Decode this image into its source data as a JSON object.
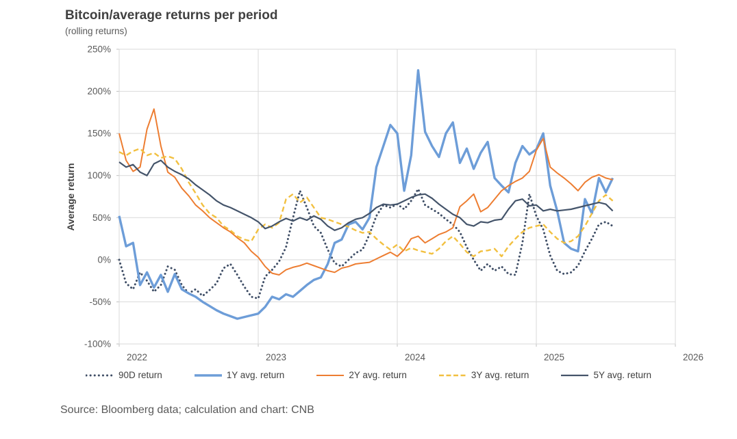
{
  "title": "Bitcoin/average returns per period",
  "subtitle": "(rolling returns)",
  "source": "Source: Bloomberg data; calculation and chart: CNB",
  "colors": {
    "title_text": "#404040",
    "axis_text": "#595959",
    "gridline": "#D9D9D9",
    "background": "#FFFFFF",
    "series_90d": "#3F4E66",
    "series_1y": "#6D9DD8",
    "series_2y": "#ED7D31",
    "series_3y": "#F2C040",
    "series_5y": "#44546A"
  },
  "chart_data": {
    "type": "line",
    "title": "Bitcoin/average returns per period",
    "subtitle": "(rolling returns)",
    "xlabel": "",
    "ylabel": "Average return",
    "grid": true,
    "legend_position": "bottom",
    "xlim": [
      2022,
      2026
    ],
    "ylim": [
      -100,
      250
    ],
    "x_ticks": [
      2022,
      2023,
      2024,
      2025,
      2026
    ],
    "y_ticks": [
      250,
      200,
      150,
      100,
      50,
      0,
      -50,
      -100
    ],
    "y_tick_suffix": "%",
    "x_start": 2022.0,
    "x_step": 0.05,
    "series": [
      {
        "name": "90D return",
        "color": "#3F4E66",
        "style": "dotted",
        "width": 3,
        "values": [
          0,
          -28,
          -35,
          -15,
          -25,
          -38,
          -30,
          -8,
          -12,
          -30,
          -40,
          -35,
          -43,
          -36,
          -28,
          -10,
          -5,
          -18,
          -32,
          -44,
          -46,
          -20,
          -12,
          -2,
          15,
          50,
          82,
          62,
          40,
          32,
          12,
          -4,
          -8,
          0,
          8,
          12,
          30,
          52,
          65,
          62,
          66,
          60,
          70,
          84,
          65,
          60,
          55,
          48,
          42,
          33,
          15,
          0,
          -13,
          -5,
          -13,
          -8,
          -17,
          -18,
          20,
          78,
          52,
          36,
          5,
          -13,
          -17,
          -15,
          -7,
          10,
          25,
          42,
          45,
          40
        ]
      },
      {
        "name": "1Y avg. return",
        "color": "#6D9DD8",
        "style": "solid",
        "width": 3.4,
        "values": [
          52,
          16,
          20,
          -30,
          -15,
          -33,
          -18,
          -38,
          -17,
          -35,
          -40,
          -44,
          -50,
          -55,
          -60,
          -64,
          -67,
          -70,
          -68,
          -66,
          -64,
          -56,
          -44,
          -47,
          -41,
          -44,
          -37,
          -30,
          -24,
          -21,
          -5,
          20,
          24,
          42,
          45,
          36,
          50,
          110,
          135,
          160,
          150,
          82,
          124,
          225,
          152,
          135,
          122,
          150,
          163,
          115,
          132,
          108,
          127,
          140,
          97,
          88,
          80,
          115,
          135,
          125,
          131,
          150,
          88,
          58,
          20,
          13,
          10,
          72,
          55,
          97,
          80,
          97
        ]
      },
      {
        "name": "2Y avg. return",
        "color": "#ED7D31",
        "style": "solid",
        "width": 2,
        "values": [
          150,
          118,
          105,
          110,
          155,
          179,
          135,
          104,
          98,
          85,
          76,
          65,
          58,
          50,
          44,
          38,
          33,
          26,
          20,
          10,
          3,
          -8,
          -16,
          -18,
          -12,
          -9,
          -7,
          -4,
          -7,
          -10,
          -13,
          -15,
          -10,
          -8,
          -5,
          -4,
          -3,
          1,
          5,
          9,
          4,
          12,
          25,
          28,
          20,
          25,
          30,
          33,
          38,
          63,
          70,
          78,
          57,
          62,
          72,
          82,
          88,
          93,
          97,
          105,
          130,
          144,
          110,
          103,
          97,
          90,
          82,
          92,
          98,
          101,
          97,
          95
        ]
      },
      {
        "name": "3Y avg. return",
        "color": "#F2C040",
        "style": "dashed",
        "width": 2.4,
        "values": [
          128,
          124,
          129,
          132,
          124,
          127,
          121,
          123,
          120,
          108,
          92,
          79,
          65,
          55,
          50,
          40,
          35,
          28,
          24,
          22,
          36,
          42,
          38,
          44,
          72,
          78,
          68,
          74,
          62,
          50,
          48,
          45,
          42,
          39,
          35,
          32,
          33,
          25,
          18,
          12,
          18,
          10,
          14,
          11,
          9,
          7,
          13,
          22,
          28,
          19,
          9,
          4,
          10,
          11,
          13,
          4,
          16,
          25,
          33,
          38,
          40,
          42,
          33,
          25,
          20,
          22,
          28,
          40,
          55,
          70,
          77,
          70
        ]
      },
      {
        "name": "5Y avg. return",
        "color": "#44546A",
        "style": "solid",
        "width": 2.2,
        "values": [
          116,
          110,
          113,
          104,
          100,
          114,
          118,
          110,
          105,
          101,
          96,
          89,
          83,
          77,
          70,
          65,
          62,
          58,
          54,
          50,
          45,
          37,
          40,
          45,
          49,
          46,
          50,
          47,
          52,
          48,
          40,
          35,
          38,
          44,
          48,
          50,
          55,
          62,
          66,
          65,
          66,
          70,
          74,
          77,
          78,
          73,
          66,
          60,
          54,
          50,
          42,
          40,
          45,
          44,
          47,
          48,
          60,
          70,
          72,
          64,
          65,
          58,
          60,
          58,
          59,
          60,
          62,
          64,
          66,
          68,
          66,
          58
        ]
      }
    ]
  }
}
